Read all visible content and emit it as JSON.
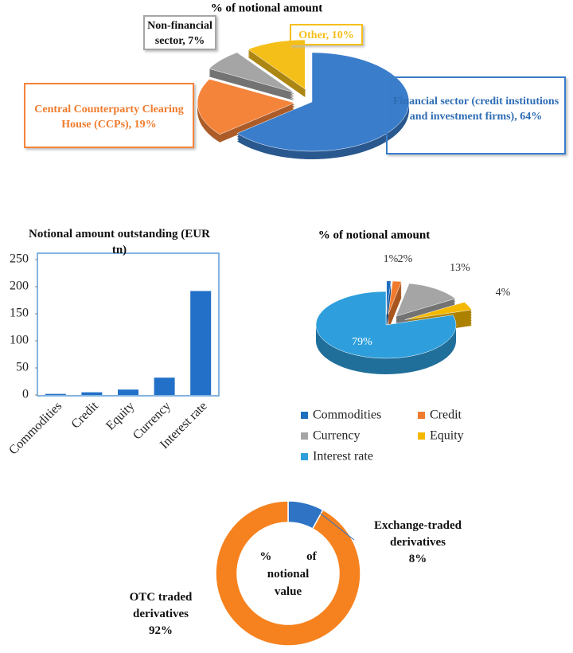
{
  "chart_data": [
    {
      "type": "pie",
      "title": "% of notional amount",
      "values": [
        64,
        19,
        7,
        10
      ],
      "value_labels": [
        "Financial sector (credit institutions and investment firms), 64%",
        "Central Counterparty Clearing House (CCPs), 19%",
        "Non-financial sector, 7%",
        "Other, 10%"
      ],
      "colors": [
        "#3a7dcb",
        "#f5843b",
        "#a5a5a5",
        "#f5bf1a"
      ]
    },
    {
      "type": "bar",
      "title": "Notional amount outstanding (EUR tn)",
      "categories": [
        "Commodities",
        "Credit",
        "Equity",
        "Currency",
        "Interest rate"
      ],
      "values": [
        2,
        5,
        10,
        32,
        192
      ],
      "color": "#2270c8",
      "ylim": [
        0,
        250
      ],
      "yticks": [
        0,
        50,
        100,
        150,
        200,
        250
      ]
    },
    {
      "type": "pie",
      "title": "% of notional amount",
      "categories": [
        "Commodities",
        "Credit",
        "Currency",
        "Equity",
        "Interest rate"
      ],
      "values": [
        1,
        2,
        13,
        4,
        79
      ],
      "value_labels": [
        "1%",
        "2%",
        "13%",
        "4%",
        "79%"
      ],
      "colors": [
        "#1f6fc0",
        "#f07b2d",
        "#a5a5a5",
        "#f5b800",
        "#2e9fdc"
      ],
      "legend": "bottom"
    },
    {
      "type": "donut",
      "title": "% of notional value",
      "categories": [
        "Exchange-traded derivatives",
        "OTC traded derivatives"
      ],
      "values": [
        8,
        92
      ],
      "value_labels": [
        "8%",
        "92%"
      ],
      "colors": [
        "#2e73c4",
        "#f6821f"
      ]
    }
  ]
}
